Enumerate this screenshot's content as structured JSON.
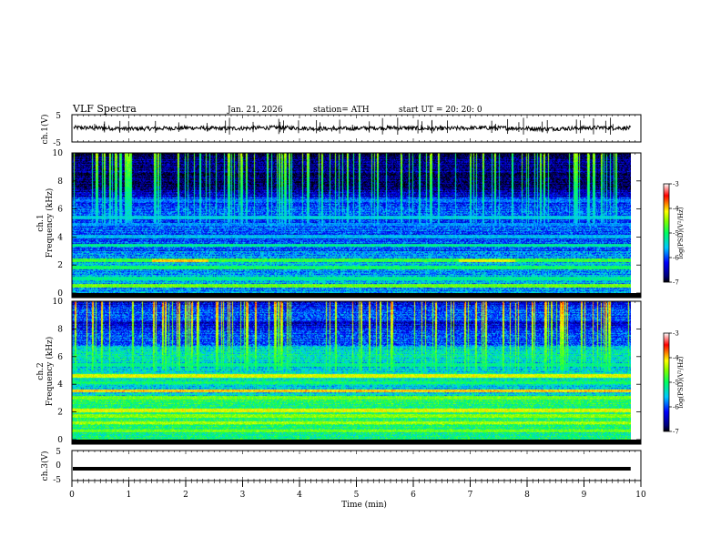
{
  "header": {
    "title": "VLF  Spectra",
    "date": "Jan. 21, 2026",
    "station": "station= ATH",
    "start": "start  UT  =   20: 20: 0"
  },
  "chart_data": [
    {
      "type": "line",
      "panel": "ch1-waveform",
      "ylabel": "ch.1(V)",
      "ylim": [
        -5,
        5
      ],
      "yticks": [
        "5",
        "-5"
      ],
      "x_range_min": [
        0,
        9.82
      ],
      "series": [
        {
          "values_V": [
            0.3,
            0.1,
            -0.2,
            0.0,
            0.2,
            -0.1,
            0.1,
            0.3,
            0.0,
            -0.2,
            0.1,
            0.2,
            -0.1,
            0.0,
            0.2,
            0.1,
            -0.2,
            0.0,
            0.3,
            0.1
          ]
        }
      ],
      "color": "#000000"
    },
    {
      "type": "heatmap",
      "panel": "ch1-spectrogram",
      "channel": "ch.1",
      "ylabel": "Frequency (kHz)",
      "ylim_kHz": [
        0,
        10
      ],
      "yticks": [
        "0",
        "2",
        "4",
        "6",
        "8",
        "10"
      ],
      "x_range_min": [
        0,
        9.82
      ],
      "colorbar": {
        "label": "log(PSD)(V²/Hz)",
        "range": [
          -7,
          -3
        ],
        "ticks": [
          "-3",
          "-4",
          "-5",
          "-6",
          "-7"
        ]
      },
      "dominant_level": -6.0,
      "bands_kHz": [
        {
          "f": 0.5,
          "level": -4.6
        },
        {
          "f": 1.0,
          "level": -5.2
        },
        {
          "f": 1.8,
          "level": -5.0
        },
        {
          "f": 2.3,
          "level": -4.8
        },
        {
          "f": 3.4,
          "level": -5.2
        },
        {
          "f": 4.0,
          "level": -5.6
        },
        {
          "f": 4.9,
          "level": -5.8
        },
        {
          "f": 5.4,
          "level": -5.5
        },
        {
          "f": 6.6,
          "level": -5.9
        }
      ],
      "bright_segments": [
        {
          "f_kHz": 2.3,
          "t_start_min": 1.4,
          "t_end_min": 2.4,
          "level": -4.0
        },
        {
          "f_kHz": 2.3,
          "t_start_min": 6.8,
          "t_end_min": 7.8,
          "level": -4.2
        }
      ]
    },
    {
      "type": "heatmap",
      "panel": "ch2-spectrogram",
      "channel": "ch.2",
      "ylabel": "Frequency (kHz)",
      "ylim_kHz": [
        0,
        10
      ],
      "yticks": [
        "0",
        "2",
        "4",
        "6",
        "8",
        "10"
      ],
      "x_range_min": [
        0,
        9.82
      ],
      "colorbar": {
        "label": "log(PSD)(V²/Hz)",
        "range": [
          -7,
          -3
        ],
        "ticks": [
          "-3",
          "-4",
          "-5",
          "-6",
          "-7"
        ]
      },
      "dominant_level": -5.4,
      "bands_kHz": [
        {
          "f": 0.6,
          "level": -4.6
        },
        {
          "f": 1.2,
          "level": -4.4
        },
        {
          "f": 1.7,
          "level": -4.5
        },
        {
          "f": 2.1,
          "level": -4.2
        },
        {
          "f": 3.0,
          "level": -4.6
        },
        {
          "f": 3.5,
          "level": -4.0
        },
        {
          "f": 4.1,
          "level": -5.0
        },
        {
          "f": 4.6,
          "level": -4.2
        },
        {
          "f": 5.4,
          "level": -5.2
        }
      ],
      "bright_segments": []
    },
    {
      "type": "line",
      "panel": "ch3-waveform",
      "ylabel": "ch.3(V)",
      "ylim": [
        -5,
        5
      ],
      "yticks": [
        "5",
        "0",
        "-5"
      ],
      "x_range_min": [
        0,
        9.82
      ],
      "series": [
        {
          "values_V": [
            -1.2,
            -1.2,
            -1.2,
            -1.2,
            -1.2
          ]
        }
      ],
      "color": "#000000"
    }
  ],
  "xaxis": {
    "label": "Time  (min)",
    "ticks": [
      "0",
      "1",
      "2",
      "3",
      "4",
      "5",
      "6",
      "7",
      "8",
      "9",
      "10"
    ],
    "range": [
      0,
      10
    ]
  }
}
